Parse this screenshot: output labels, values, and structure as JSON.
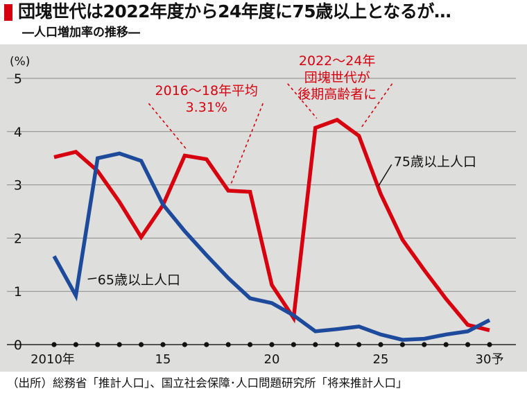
{
  "header": {
    "title": "団塊世代は2022年度から24年度に75歳以上となるが…",
    "subtitle": "―人口増加率の推移―"
  },
  "chart_data": {
    "type": "line",
    "ylabel": "(%)",
    "ylim": [
      0,
      5
    ],
    "yticks": [
      0,
      1,
      2,
      3,
      4,
      5
    ],
    "xlim": [
      2010,
      2030
    ],
    "xtick_labels": [
      {
        "x": 2010,
        "label": "2010年"
      },
      {
        "x": 2015,
        "label": "15"
      },
      {
        "x": 2020,
        "label": "20"
      },
      {
        "x": 2025,
        "label": "25"
      },
      {
        "x": 2030,
        "label": "30予"
      }
    ],
    "x": [
      2010,
      2011,
      2012,
      2013,
      2014,
      2015,
      2016,
      2017,
      2018,
      2019,
      2020,
      2021,
      2022,
      2023,
      2024,
      2025,
      2026,
      2027,
      2028,
      2029,
      2030
    ],
    "grid": true,
    "series": [
      {
        "name": "75歳以上人口",
        "color": "#d7000f",
        "values": [
          3.52,
          3.62,
          3.26,
          2.68,
          2.02,
          2.62,
          3.55,
          3.48,
          2.89,
          2.87,
          1.12,
          0.5,
          4.07,
          4.22,
          3.92,
          2.83,
          1.97,
          1.4,
          0.86,
          0.37,
          0.27
        ]
      },
      {
        "name": "65歳以上人口",
        "color": "#1e4a9c",
        "values": [
          1.66,
          0.92,
          3.5,
          3.59,
          3.45,
          2.63,
          2.13,
          1.68,
          1.25,
          0.87,
          0.78,
          0.55,
          0.25,
          0.29,
          0.34,
          0.19,
          0.09,
          0.11,
          0.19,
          0.25,
          0.46
        ]
      }
    ],
    "annotations": [
      {
        "lines": [
          "2016〜18年平均",
          "3.31%"
        ],
        "color": "#d7000f"
      },
      {
        "lines": [
          "2022〜24年",
          "団塊世代が",
          "後期高齢者に"
        ],
        "color": "#d7000f"
      }
    ]
  },
  "source": "（出所）総務省「推計人口」、国立社会保障･人口問題研究所「将来推計人口」"
}
